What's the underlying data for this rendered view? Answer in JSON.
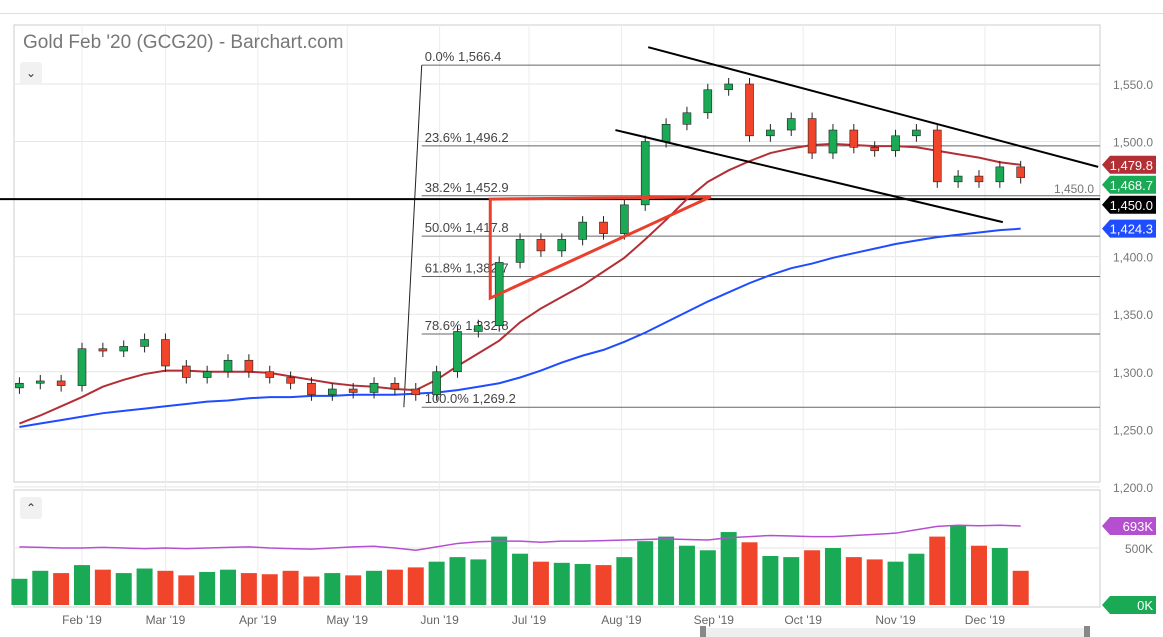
{
  "chart_data": {
    "type": "candlestick",
    "title": "Gold Feb '20 (GCG20) - Barchart.com",
    "price_axis": {
      "ticks": [
        "1,550.0",
        "1,500.0",
        "1,450.0",
        "1,400.0",
        "1,350.0",
        "1,300.0",
        "1,250.0",
        "1,200.0"
      ],
      "tick_values": [
        1550,
        1500,
        1450,
        1400,
        1350,
        1300,
        1250,
        1200
      ]
    },
    "volume_axis": {
      "ticks": [
        "500K"
      ],
      "tick_values": [
        500
      ]
    },
    "x_ticks": [
      {
        "label": "Feb '19",
        "date": "2019-02-01"
      },
      {
        "label": "Mar '19",
        "date": "2019-03-01"
      },
      {
        "label": "Apr '19",
        "date": "2019-04-01"
      },
      {
        "label": "May '19",
        "date": "2019-05-01"
      },
      {
        "label": "Jun '19",
        "date": "2019-06-01"
      },
      {
        "label": "Jul '19",
        "date": "2019-07-01"
      },
      {
        "label": "Aug '19",
        "date": "2019-08-01"
      },
      {
        "label": "Sep '19",
        "date": "2019-09-01"
      },
      {
        "label": "Oct '19",
        "date": "2019-10-01"
      },
      {
        "label": "Nov '19",
        "date": "2019-11-01"
      },
      {
        "label": "Dec '19",
        "date": "2019-12-01"
      }
    ],
    "start_date": "2019-01-11",
    "interval_days": 7,
    "close": [
      1290,
      1292,
      1288,
      1320,
      1318,
      1322,
      1328,
      1305,
      1295,
      1300,
      1310,
      1300,
      1295,
      1290,
      1280,
      1285,
      1282,
      1290,
      1285,
      1280,
      1300,
      1335,
      1340,
      1395,
      1415,
      1405,
      1415,
      1430,
      1420,
      1445,
      1500,
      1515,
      1525,
      1545,
      1550,
      1505,
      1510,
      1520,
      1490,
      1510,
      1495,
      1492,
      1505,
      1510,
      1465,
      1470,
      1465,
      1478,
      1468.7
    ],
    "ma_red": [
      1255,
      1262,
      1270,
      1278,
      1287,
      1293,
      1298,
      1301,
      1301,
      1300,
      1300,
      1300,
      1299,
      1296,
      1293,
      1290,
      1288,
      1287,
      1285,
      1284,
      1293,
      1305,
      1316,
      1327,
      1343,
      1355,
      1365,
      1375,
      1387,
      1399,
      1415,
      1432,
      1450,
      1465,
      1475,
      1483,
      1490,
      1494,
      1497,
      1498,
      1497,
      1496,
      1496,
      1495,
      1492,
      1489,
      1486,
      1482,
      1479.8
    ],
    "ma_blue": [
      1252,
      1255,
      1258,
      1261,
      1264,
      1266,
      1268,
      1270,
      1272,
      1274,
      1275,
      1277,
      1278,
      1278,
      1279,
      1279,
      1280,
      1280,
      1280,
      1281,
      1282,
      1284,
      1287,
      1290,
      1295,
      1301,
      1308,
      1314,
      1319,
      1326,
      1334,
      1343,
      1352,
      1361,
      1369,
      1377,
      1384,
      1390,
      1394,
      1399,
      1403,
      1407,
      1411,
      1414,
      1417,
      1419,
      1421,
      1423,
      1424.3
    ],
    "volume_k": [
      230,
      300,
      280,
      350,
      310,
      280,
      320,
      300,
      260,
      290,
      310,
      280,
      270,
      300,
      250,
      280,
      260,
      300,
      310,
      330,
      380,
      420,
      400,
      600,
      450,
      380,
      370,
      360,
      350,
      420,
      560,
      600,
      520,
      480,
      640,
      550,
      430,
      420,
      480,
      500,
      420,
      400,
      380,
      450,
      600,
      700,
      520,
      500,
      300
    ],
    "open_interest_k": [
      510,
      505,
      500,
      500,
      505,
      500,
      495,
      500,
      495,
      500,
      505,
      510,
      500,
      495,
      490,
      500,
      510,
      515,
      500,
      480,
      510,
      540,
      555,
      560,
      560,
      550,
      560,
      560,
      565,
      570,
      575,
      580,
      575,
      570,
      590,
      600,
      610,
      605,
      600,
      600,
      610,
      620,
      630,
      660,
      690,
      700,
      695,
      700,
      693
    ],
    "fibonacci": {
      "anchor_start": {
        "date": "2019-05-20",
        "price": 1269.2
      },
      "anchor_end": {
        "date": "2019-05-26",
        "price": 1566.4
      },
      "levels": [
        {
          "label": "0.0% 1,566.4",
          "price": 1566.4
        },
        {
          "label": "23.6% 1,496.2",
          "price": 1496.2
        },
        {
          "label": "38.2% 1,452.9",
          "price": 1452.9
        },
        {
          "label": "50.0% 1,417.8",
          "price": 1417.8
        },
        {
          "label": "61.8% 1,382.7",
          "price": 1382.7
        },
        {
          "label": "78.6% 1,332.8",
          "price": 1332.8
        },
        {
          "label": "100.0% 1,269.2",
          "price": 1269.2
        }
      ]
    },
    "trendlines": [
      {
        "color": "#000000",
        "from": {
          "date": "2019-08-10",
          "price": 1582
        },
        "to": {
          "date": "2020-01-08",
          "price": 1478
        }
      },
      {
        "color": "#000000",
        "from": {
          "date": "2019-07-30",
          "price": 1510
        },
        "to": {
          "date": "2019-12-07",
          "price": 1430
        }
      }
    ],
    "horizontal_line": {
      "price": 1450.0,
      "color": "#000000"
    },
    "triangle": {
      "color": "#e8402c",
      "points": [
        {
          "date": "2019-06-18",
          "price": 1450
        },
        {
          "date": "2019-08-31",
          "price": 1452
        },
        {
          "date": "2019-06-18",
          "price": 1364
        }
      ]
    },
    "tags": [
      {
        "label": "1,479.8",
        "price": 1479.8,
        "color": "#b22f35"
      },
      {
        "label": "1,468.7",
        "price": 1468.7,
        "color": "#1aaa55"
      },
      {
        "label": "1,450.0",
        "price": 1450.0,
        "color": "#000000"
      },
      {
        "label": "1,424.3",
        "price": 1424.3,
        "color": "#1f4cff"
      }
    ],
    "volume_tags": [
      {
        "label": "693K",
        "value": 693,
        "color": "#b44fd0"
      },
      {
        "label": "0K",
        "value": 0,
        "color": "#1aaa55"
      }
    ],
    "colors": {
      "up": "#1aaa55",
      "down": "#f0452a",
      "ma_red": "#b22f35",
      "ma_blue": "#1f4cff",
      "oi": "#b44fd0"
    }
  },
  "ui": {
    "collapse_icon": "chevron-down-icon",
    "expand_icon": "chevron-up-icon",
    "collapse_glyph": "⌄",
    "expand_glyph": "⌃"
  }
}
